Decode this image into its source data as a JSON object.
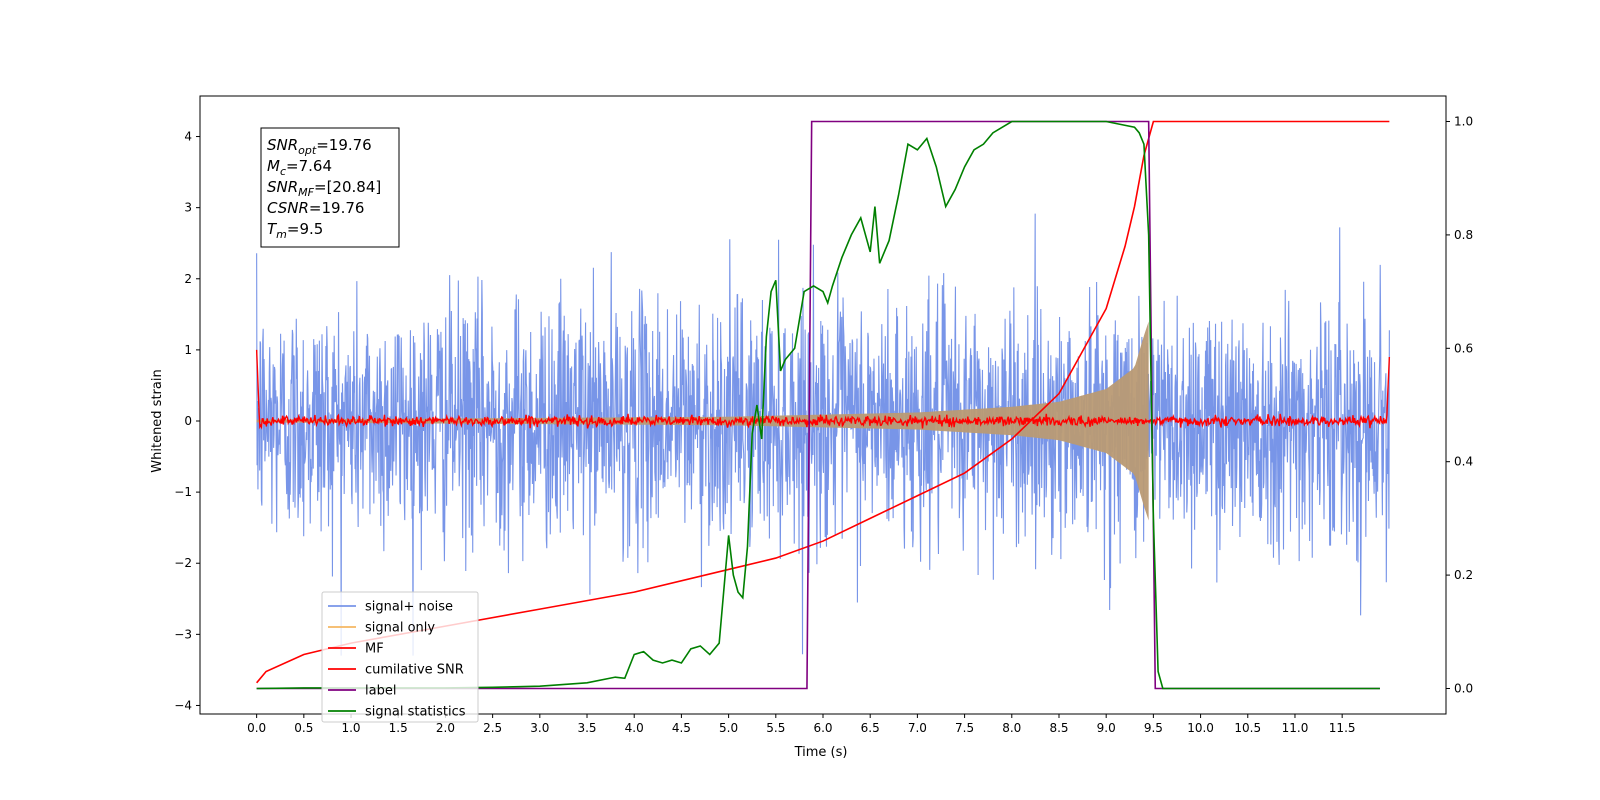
{
  "chart_data": {
    "type": "line",
    "xlabel": "Time (s)",
    "ylabel": "Whitened strain",
    "xlim": [
      -0.6,
      12.6
    ],
    "ylim": [
      -4.12,
      4.57
    ],
    "y2lim": [
      -0.045,
      1.045
    ],
    "grid": false,
    "legend_placement": "lower-left",
    "x_ticks": [
      "0.0",
      "0.5",
      "1.0",
      "1.5",
      "2.0",
      "2.5",
      "3.0",
      "3.5",
      "4.0",
      "4.5",
      "5.0",
      "5.5",
      "6.0",
      "6.5",
      "7.0",
      "7.5",
      "8.0",
      "8.5",
      "9.0",
      "9.5",
      "10.0",
      "10.5",
      "11.0",
      "11.5"
    ],
    "y_ticks": [
      {
        "value": 4,
        "label": "4"
      },
      {
        "value": 3,
        "label": "3"
      },
      {
        "value": 2,
        "label": "2"
      },
      {
        "value": 1,
        "label": "1"
      },
      {
        "value": 0,
        "label": "0"
      },
      {
        "value": -1,
        "label": "−1"
      },
      {
        "value": -2,
        "label": "−2"
      },
      {
        "value": -3,
        "label": "−3"
      },
      {
        "value": -4,
        "label": "−4"
      }
    ],
    "y2_ticks": [
      "0.0",
      "0.2",
      "0.4",
      "0.6",
      "0.8",
      "1.0"
    ],
    "annotation": [
      {
        "sym": "SNR",
        "sub": "opt",
        "val": "=19.76"
      },
      {
        "sym": "M",
        "sub": "c",
        "val": "=7.64"
      },
      {
        "sym": "SNR",
        "sub": "MF",
        "val": "=[20.84]"
      },
      {
        "sym": "CSNR",
        "sub": "",
        "val": "=19.76"
      },
      {
        "sym": "T",
        "sub": "m",
        "val": "=9.5"
      }
    ],
    "series": [
      {
        "name": "signal+ noise",
        "color": "#7895e8",
        "axis": "left",
        "t_range": [
          0.0,
          12.0
        ],
        "std": 0.85,
        "envelope_note": "noise, roughly within ±3"
      },
      {
        "name": "signal only",
        "color": "#f5b763",
        "axis": "left",
        "t_range": [
          0.0,
          9.45
        ],
        "amplitude": [
          [
            0.0,
            0.02
          ],
          [
            5.0,
            0.06
          ],
          [
            7.0,
            0.12
          ],
          [
            8.0,
            0.2
          ],
          [
            8.5,
            0.27
          ],
          [
            9.0,
            0.45
          ],
          [
            9.3,
            0.75
          ],
          [
            9.4,
            1.2
          ],
          [
            9.45,
            1.4
          ]
        ]
      },
      {
        "name": "MF",
        "color": "#ff0000",
        "axis": "left",
        "t_range": [
          0.0,
          12.0
        ],
        "edge_values": [
          [
            0.0,
            1.0
          ],
          [
            12.0,
            0.9
          ]
        ],
        "baseline": 0.0
      },
      {
        "name": "cumilative SNR",
        "color": "#ff0000",
        "axis": "right",
        "points": [
          [
            0.0,
            0.01
          ],
          [
            0.1,
            0.03
          ],
          [
            0.5,
            0.06
          ],
          [
            1.0,
            0.08
          ],
          [
            2.0,
            0.11
          ],
          [
            3.0,
            0.14
          ],
          [
            4.0,
            0.17
          ],
          [
            5.0,
            0.21
          ],
          [
            5.5,
            0.23
          ],
          [
            6.0,
            0.26
          ],
          [
            6.5,
            0.3
          ],
          [
            7.0,
            0.34
          ],
          [
            7.5,
            0.38
          ],
          [
            8.0,
            0.44
          ],
          [
            8.5,
            0.52
          ],
          [
            9.0,
            0.67
          ],
          [
            9.2,
            0.78
          ],
          [
            9.3,
            0.85
          ],
          [
            9.4,
            0.94
          ],
          [
            9.5,
            1.0
          ],
          [
            12.0,
            1.0
          ]
        ]
      },
      {
        "name": "label",
        "color": "#800080",
        "axis": "right",
        "points": [
          [
            0.0,
            0.0
          ],
          [
            5.83,
            0.0
          ],
          [
            5.88,
            1.0
          ],
          [
            9.45,
            1.0
          ],
          [
            9.52,
            0.0
          ],
          [
            11.9,
            0.0
          ]
        ]
      },
      {
        "name": "signal statistics",
        "color": "#008000",
        "axis": "right",
        "points": [
          [
            0.0,
            0.0
          ],
          [
            0.5,
            0.001
          ],
          [
            1.0,
            0.001
          ],
          [
            1.5,
            0.001
          ],
          [
            2.0,
            0.001
          ],
          [
            2.5,
            0.002
          ],
          [
            3.0,
            0.004
          ],
          [
            3.5,
            0.01
          ],
          [
            3.8,
            0.02
          ],
          [
            3.9,
            0.018
          ],
          [
            4.0,
            0.06
          ],
          [
            4.1,
            0.065
          ],
          [
            4.2,
            0.05
          ],
          [
            4.3,
            0.045
          ],
          [
            4.4,
            0.05
          ],
          [
            4.5,
            0.045
          ],
          [
            4.6,
            0.07
          ],
          [
            4.7,
            0.075
          ],
          [
            4.8,
            0.06
          ],
          [
            4.9,
            0.08
          ],
          [
            5.0,
            0.27
          ],
          [
            5.05,
            0.2
          ],
          [
            5.1,
            0.17
          ],
          [
            5.15,
            0.16
          ],
          [
            5.2,
            0.25
          ],
          [
            5.25,
            0.45
          ],
          [
            5.3,
            0.5
          ],
          [
            5.35,
            0.44
          ],
          [
            5.4,
            0.62
          ],
          [
            5.45,
            0.7
          ],
          [
            5.5,
            0.72
          ],
          [
            5.55,
            0.56
          ],
          [
            5.6,
            0.58
          ],
          [
            5.7,
            0.6
          ],
          [
            5.8,
            0.7
          ],
          [
            5.9,
            0.71
          ],
          [
            6.0,
            0.7
          ],
          [
            6.05,
            0.68
          ],
          [
            6.1,
            0.71
          ],
          [
            6.2,
            0.76
          ],
          [
            6.3,
            0.8
          ],
          [
            6.4,
            0.83
          ],
          [
            6.5,
            0.77
          ],
          [
            6.55,
            0.85
          ],
          [
            6.6,
            0.75
          ],
          [
            6.7,
            0.79
          ],
          [
            6.8,
            0.87
          ],
          [
            6.9,
            0.96
          ],
          [
            7.0,
            0.95
          ],
          [
            7.1,
            0.97
          ],
          [
            7.2,
            0.92
          ],
          [
            7.3,
            0.85
          ],
          [
            7.4,
            0.88
          ],
          [
            7.5,
            0.92
          ],
          [
            7.6,
            0.95
          ],
          [
            7.7,
            0.96
          ],
          [
            7.8,
            0.98
          ],
          [
            7.9,
            0.99
          ],
          [
            8.0,
            1.0
          ],
          [
            8.5,
            1.0
          ],
          [
            9.0,
            1.0
          ],
          [
            9.3,
            0.99
          ],
          [
            9.35,
            0.98
          ],
          [
            9.4,
            0.96
          ],
          [
            9.45,
            0.8
          ],
          [
            9.5,
            0.3
          ],
          [
            9.55,
            0.03
          ],
          [
            9.6,
            0.0
          ],
          [
            11.9,
            0.0
          ]
        ]
      }
    ]
  }
}
